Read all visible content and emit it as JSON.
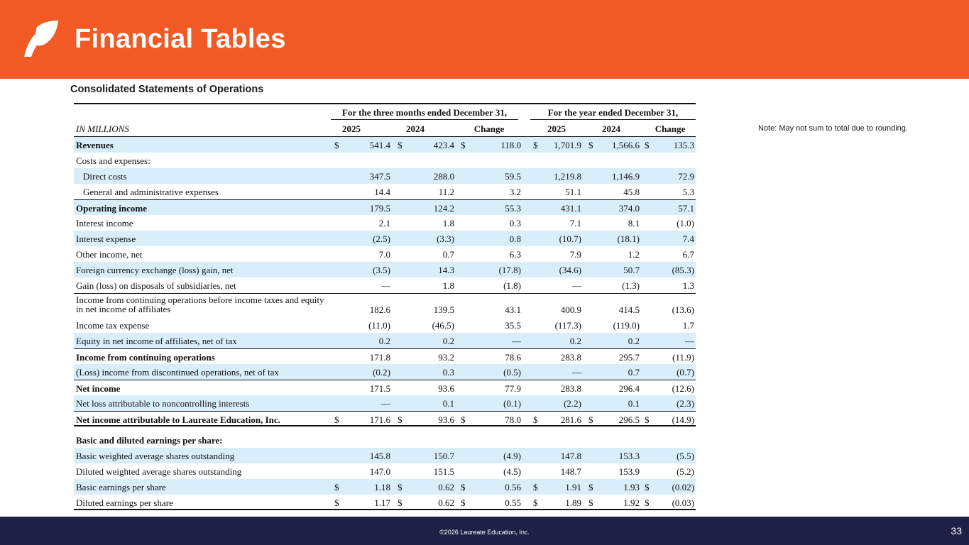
{
  "header": {
    "title": "Financial Tables",
    "logo": "leaf-icon"
  },
  "subtitle": "Consolidated Statements of Operations",
  "note": "Note:  May not sum to total due to rounding.",
  "table": {
    "group_quarter": "For the three months ended December 31,",
    "group_year": "For the year ended December 31,",
    "units_label": "IN MILLIONS",
    "columns": [
      "2025",
      "2024",
      "Change",
      "2025",
      "2024",
      "Change"
    ],
    "rows": [
      {
        "label": "Revenues",
        "bold": true,
        "shade": true,
        "dollar": true,
        "values": [
          "541.4",
          "423.4",
          "118.0",
          "1,701.9",
          "1,566.6",
          "135.3"
        ]
      },
      {
        "label": "Costs and expenses:",
        "values": []
      },
      {
        "label": "Direct costs",
        "indent": true,
        "shade": true,
        "values": [
          "347.5",
          "288.0",
          "59.5",
          "1,219.8",
          "1,146.9",
          "72.9"
        ]
      },
      {
        "label": "General and administrative expenses",
        "indent": true,
        "values": [
          "14.4",
          "11.2",
          "3.2",
          "51.1",
          "45.8",
          "5.3"
        ]
      },
      {
        "label": "Operating income",
        "bold": true,
        "shade": true,
        "topline": true,
        "values": [
          "179.5",
          "124.2",
          "55.3",
          "431.1",
          "374.0",
          "57.1"
        ]
      },
      {
        "label": "Interest income",
        "values": [
          "2.1",
          "1.8",
          "0.3",
          "7.1",
          "8.1",
          "(1.0)"
        ]
      },
      {
        "label": "Interest expense",
        "shade": true,
        "values": [
          "(2.5)",
          "(3.3)",
          "0.8",
          "(10.7)",
          "(18.1)",
          "7.4"
        ]
      },
      {
        "label": "Other income, net",
        "values": [
          "7.0",
          "0.7",
          "6.3",
          "7.9",
          "1.2",
          "6.7"
        ]
      },
      {
        "label": "Foreign currency exchange (loss) gain, net",
        "shade": true,
        "values": [
          "(3.5)",
          "14.3",
          "(17.8)",
          "(34.6)",
          "50.7",
          "(85.3)"
        ]
      },
      {
        "label": "Gain (loss) on disposals of subsidiaries, net",
        "values": [
          "—",
          "1.8",
          "(1.8)",
          "—",
          "(1.3)",
          "1.3"
        ]
      },
      {
        "label": "Income from continuing operations before income taxes and equity in net income of affiliates",
        "tall": true,
        "topline": true,
        "values": [
          "182.6",
          "139.5",
          "43.1",
          "400.9",
          "414.5",
          "(13.6)"
        ]
      },
      {
        "label": "Income tax expense",
        "values": [
          "(11.0)",
          "(46.5)",
          "35.5",
          "(117.3)",
          "(119.0)",
          "1.7"
        ]
      },
      {
        "label": "Equity in net income of affiliates, net of tax",
        "shade": true,
        "values": [
          "0.2",
          "0.2",
          "—",
          "0.2",
          "0.2",
          "—"
        ]
      },
      {
        "label": "Income from continuing operations",
        "bold": true,
        "topline": true,
        "values": [
          "171.8",
          "93.2",
          "78.6",
          "283.8",
          "295.7",
          "(11.9)"
        ]
      },
      {
        "label": "(Loss) income from discontinued operations, net of tax",
        "shade": true,
        "values": [
          "(0.2)",
          "0.3",
          "(0.5)",
          "—",
          "0.7",
          "(0.7)"
        ]
      },
      {
        "label": "Net income",
        "bold": true,
        "topline": true,
        "values": [
          "171.5",
          "93.6",
          "77.9",
          "283.8",
          "296.4",
          "(12.6)"
        ]
      },
      {
        "label": "Net loss attributable to noncontrolling interests",
        "shade": true,
        "values": [
          "—",
          "0.1",
          "(0.1)",
          "(2.2)",
          "0.1",
          "(2.3)"
        ]
      },
      {
        "label": "Net income attributable to Laureate Education, Inc.",
        "bold": true,
        "topline": true,
        "bottomline": true,
        "dollar": true,
        "values": [
          "171.6",
          "93.6",
          "78.0",
          "281.6",
          "296.5",
          "(14.9)"
        ]
      },
      {
        "label": "Basic and diluted earnings per share:",
        "bold": true,
        "gap": true,
        "values": []
      },
      {
        "label": "Basic weighted average shares outstanding",
        "shade": true,
        "values": [
          "145.8",
          "150.7",
          "(4.9)",
          "147.8",
          "153.3",
          "(5.5)"
        ]
      },
      {
        "label": "Diluted weighted average shares outstanding",
        "values": [
          "147.0",
          "151.5",
          "(4.5)",
          "148.7",
          "153.9",
          "(5.2)"
        ]
      },
      {
        "label": "Basic earnings per share",
        "shade": true,
        "dollar": true,
        "values": [
          "1.18",
          "0.62",
          "0.56",
          "1.91",
          "1.93",
          "(0.02)"
        ]
      },
      {
        "label": "Diluted earnings per share",
        "dollar": true,
        "bottomline": true,
        "values": [
          "1.17",
          "0.62",
          "0.55",
          "1.89",
          "1.92",
          "(0.03)"
        ]
      }
    ]
  },
  "footer": {
    "copyright": "©2026 Laureate Education, Inc.",
    "page": "33"
  },
  "colors": {
    "header": "#F15A24",
    "footer": "#201F45",
    "row_shade": "#D9EEFB"
  }
}
